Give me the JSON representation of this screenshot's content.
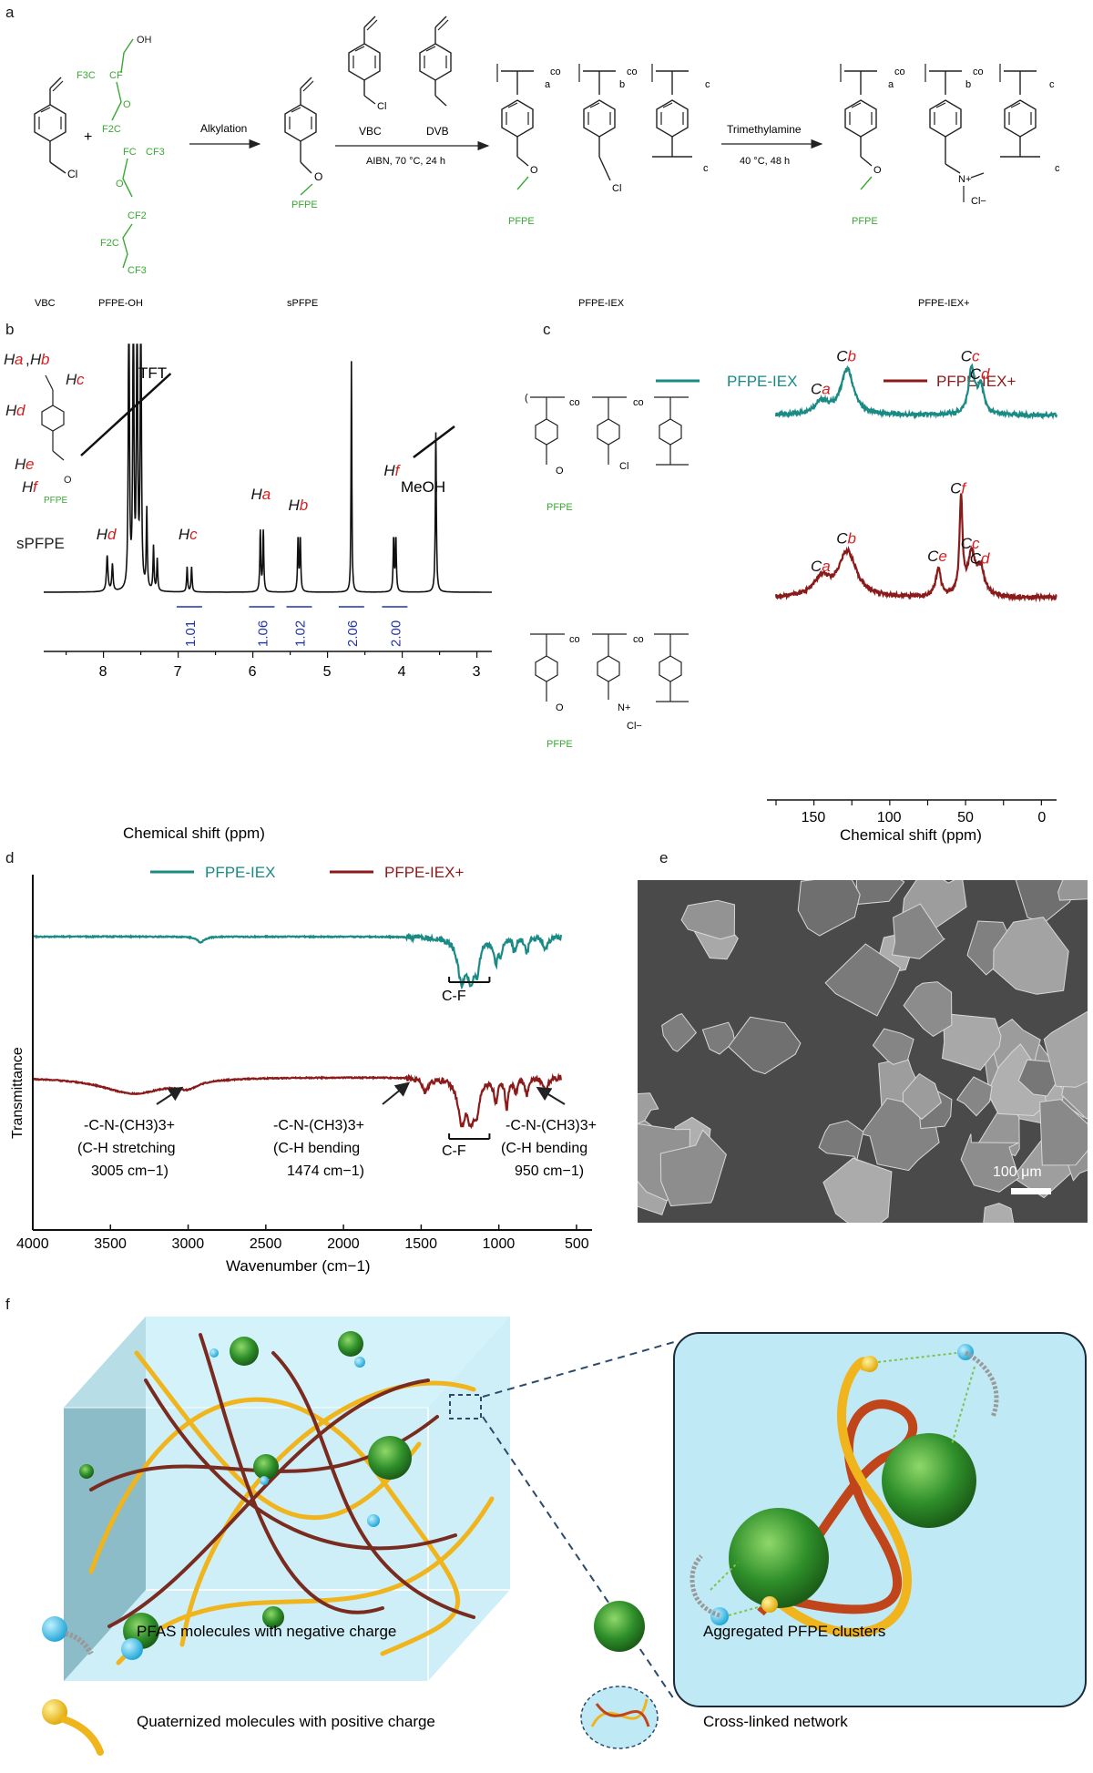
{
  "panels": {
    "a": "a",
    "b": "b",
    "c": "c",
    "d": "d",
    "e": "e",
    "f": "f"
  },
  "panel_a": {
    "compounds": {
      "vbc": "VBC",
      "pfpe_oh": "PFPE-OH",
      "spfpe": "sPFPE",
      "pfpe_iex": "PFPE-IEX",
      "pfpe_iex_plus": "PFPE-IEX+"
    },
    "reagents": {
      "vbc": "VBC",
      "dvb": "DVB"
    },
    "steps": {
      "alkylation": "Alkylation",
      "polymerization_conditions": "AIBN, 70 °C, 24 h",
      "quaternization": "Trimethylamine",
      "quaternization_conditions": "40 °C, 48 h"
    },
    "groups": {
      "pfpe": "PFPE",
      "cl": "Cl",
      "oh": "OH",
      "o": "O",
      "cf3": "CF3",
      "f3c": "F3C",
      "cf2": "CF2",
      "f2c": "F2C",
      "cf": "CF",
      "fc": "FC",
      "co": "co",
      "a": "a",
      "b": "b",
      "c": "c",
      "n_plus": "N+",
      "cl_minus": "Cl−",
      "plus": "+"
    }
  },
  "panel_b": {
    "compound": "sPFPE",
    "peak_labels": [
      "Ha,Hb",
      "Hc",
      "Hd",
      "He",
      "Hf",
      "Hd",
      "Hc",
      "Ha",
      "Hb",
      "He",
      "Hf"
    ],
    "solvent_labels": {
      "tft": "TFT",
      "meoh": "MeOH"
    },
    "xlabel": "Chemical shift (ppm)"
  },
  "panel_c": {
    "legend": {
      "pfpe_iex": "PFPE-IEX",
      "pfpe_iex_plus": "PFPE-IEX+"
    },
    "xlabel": "Chemical shift (ppm)",
    "colors": {
      "pfpe_iex": "#1a8a84",
      "pfpe_iex_plus": "#8b1a1a"
    }
  },
  "panel_d": {
    "legend": {
      "pfpe_iex": "PFPE-IEX",
      "pfpe_iex_plus": "PFPE-IEX+"
    },
    "ylabel": "Transmittance",
    "xlabel": "Wavenumber (cm−1)",
    "annotations": {
      "cf_top": "C-F",
      "cf_bottom": "C-F",
      "a1_line1": "-C-N-(CH3)3+",
      "a1_line2": "(C-H stretching",
      "a1_line3": "3005 cm−1)",
      "a2_line1": "-C-N-(CH3)3+",
      "a2_line2": "(C-H bending",
      "a2_line3": "1474 cm−1)",
      "a3_line1": "-C-N-(CH3)3+",
      "a3_line2": "(C-H bending",
      "a3_line3": "950 cm−1)"
    }
  },
  "panel_e": {
    "scale_bar": "100 μm"
  },
  "panel_f": {
    "legend": {
      "pfas": "PFAS molecules with negative charge",
      "quaternized": "Quaternized molecules with positive charge",
      "clusters": "Aggregated PFPE clusters",
      "network": "Cross-linked network"
    }
  },
  "chart_data": [
    {
      "panel": "b",
      "type": "line",
      "xlabel": "Chemical shift (ppm)",
      "xlim": [
        8.8,
        2.8
      ],
      "xticks": [
        8,
        7,
        6,
        5,
        4,
        3
      ],
      "peaks": [
        {
          "label": "Hd",
          "ppm": 7.95,
          "integral": null
        },
        {
          "label": "TFT",
          "ppm": 7.6,
          "integral": null
        },
        {
          "label": "Hc",
          "ppm": 6.85,
          "integral": "1.01"
        },
        {
          "label": "Ha",
          "ppm": 5.88,
          "integral": "1.06"
        },
        {
          "label": "Hb",
          "ppm": 5.38,
          "integral": "1.02"
        },
        {
          "label": "He",
          "ppm": 4.68,
          "integral": "2.06"
        },
        {
          "label": "Hf",
          "ppm": 4.1,
          "integral": "2.00"
        },
        {
          "label": "MeOH",
          "ppm": 3.55,
          "integral": null
        }
      ],
      "integrals": [
        "1.01",
        "1.06",
        "1.02",
        "2.06",
        "2.00"
      ]
    },
    {
      "panel": "c",
      "type": "line",
      "xlabel": "Chemical shift (ppm)",
      "xlim": [
        175,
        -10
      ],
      "xticks": [
        150,
        100,
        50,
        0
      ],
      "series": [
        {
          "name": "PFPE-IEX",
          "peaks": [
            {
              "label": "Ca",
              "ppm": 145
            },
            {
              "label": "Cb",
              "ppm": 128
            },
            {
              "label": "Cc",
              "ppm": 46
            },
            {
              "label": "Cd",
              "ppm": 40
            }
          ]
        },
        {
          "name": "PFPE-IEX+",
          "peaks": [
            {
              "label": "Ca",
              "ppm": 145
            },
            {
              "label": "Cb",
              "ppm": 128
            },
            {
              "label": "Ce",
              "ppm": 68
            },
            {
              "label": "Cf",
              "ppm": 53
            },
            {
              "label": "Cc",
              "ppm": 46
            },
            {
              "label": "Cd",
              "ppm": 40
            }
          ]
        }
      ]
    },
    {
      "panel": "d",
      "type": "line",
      "xlabel": "Wavenumber (cm−1)",
      "ylabel": "Transmittance",
      "xlim": [
        4000,
        400
      ],
      "xticks": [
        4000,
        3500,
        3000,
        2500,
        2000,
        1500,
        1000,
        500
      ],
      "series": [
        {
          "name": "PFPE-IEX"
        },
        {
          "name": "PFPE-IEX+"
        }
      ]
    }
  ]
}
